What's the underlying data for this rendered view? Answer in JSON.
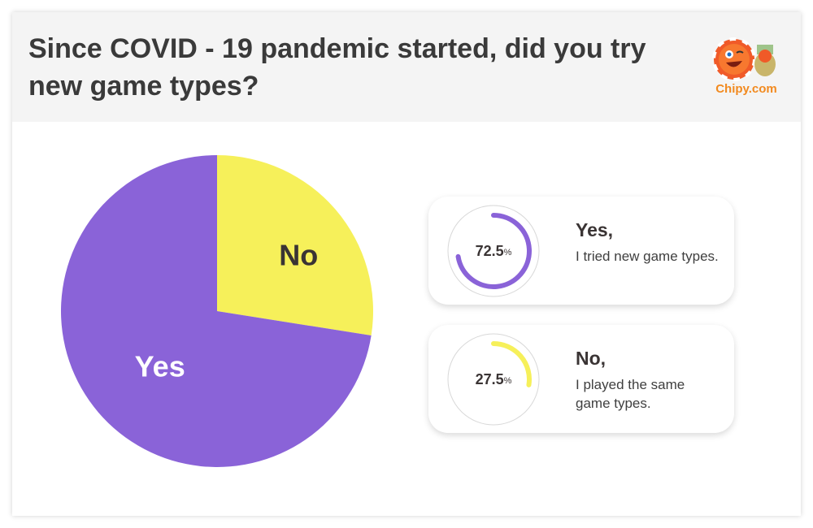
{
  "title": "Since COVID - 19 pandemic started, did you try new game types?",
  "logo": {
    "text": "Chipy.com"
  },
  "chart_data": {
    "type": "pie",
    "categories": [
      "Yes",
      "No"
    ],
    "values": [
      72.5,
      27.5
    ],
    "colors": [
      "#8a63d8",
      "#f6f05a"
    ],
    "start": "top-clockwise-from-No"
  },
  "legend": [
    {
      "percent": "72.5",
      "unit": "%",
      "title": "Yes,",
      "desc": "I tried new game types.",
      "color": "#8a63d8",
      "value": 72.5
    },
    {
      "percent": "27.5",
      "unit": "%",
      "title": "No,",
      "desc": "I played the same game types.",
      "color": "#f6f05a",
      "value": 27.5
    }
  ]
}
